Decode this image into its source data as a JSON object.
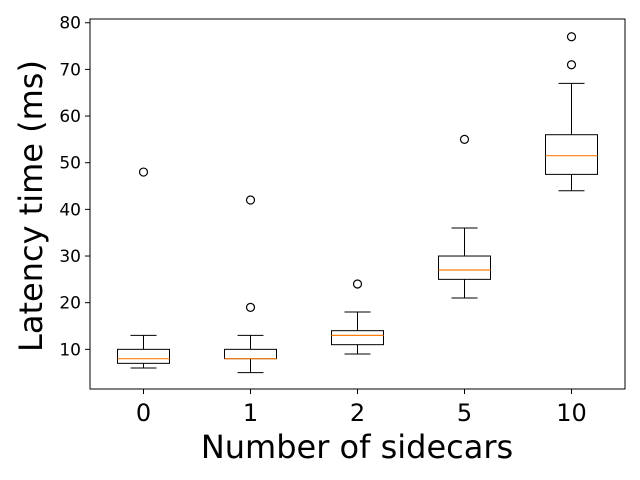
{
  "chart_data": {
    "type": "boxplot",
    "title": "",
    "xlabel": "Number of sidecars",
    "ylabel": "Latency time (ms)",
    "categories": [
      "0",
      "1",
      "2",
      "5",
      "10"
    ],
    "ylim": [
      1.5,
      80.8
    ],
    "yticks": [
      10,
      20,
      30,
      40,
      50,
      60,
      70,
      80
    ],
    "grid": false,
    "legend": "none",
    "colors": {
      "box": "#000000",
      "median": "#ff7f0e"
    },
    "boxes": [
      {
        "category": "0",
        "whisker_low": 6,
        "q1": 7,
        "median": 8,
        "q3": 10,
        "whisker_high": 13,
        "outliers": [
          48
        ]
      },
      {
        "category": "1",
        "whisker_low": 5,
        "q1": 8,
        "median": 8,
        "q3": 10,
        "whisker_high": 13,
        "outliers": [
          19,
          42
        ]
      },
      {
        "category": "2",
        "whisker_low": 9,
        "q1": 11,
        "median": 13,
        "q3": 14,
        "whisker_high": 18,
        "outliers": [
          24
        ]
      },
      {
        "category": "5",
        "whisker_low": 21,
        "q1": 25,
        "median": 27,
        "q3": 30,
        "whisker_high": 36,
        "outliers": [
          55
        ]
      },
      {
        "category": "10",
        "whisker_low": 44,
        "q1": 47.5,
        "median": 51.5,
        "q3": 56,
        "whisker_high": 67,
        "outliers": [
          71,
          77
        ]
      }
    ]
  }
}
